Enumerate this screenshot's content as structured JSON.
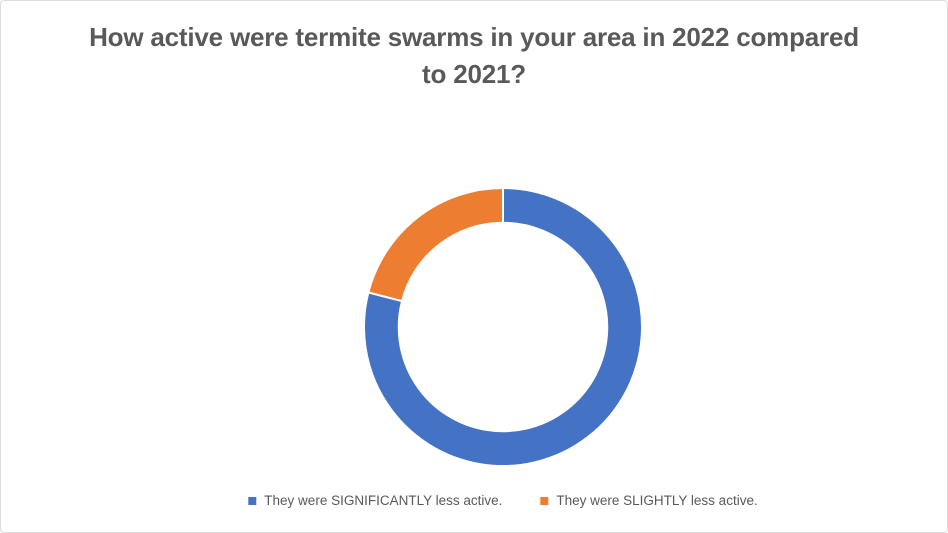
{
  "page": {
    "background_color": "#ffffff",
    "border_color": "#dcdcdc"
  },
  "chart_data": {
    "type": "donut",
    "title": "How active were termite swarms in your area in 2022 compared to 2021?",
    "title_color": "#595959",
    "segments": [
      {
        "label": "They were SIGNIFICANTLY less active.",
        "value": 79,
        "color": "#4472C4"
      },
      {
        "label": "They were SLIGHTLY less active.",
        "value": 21,
        "color": "#ED7D31"
      }
    ],
    "units": "% (estimated from arc angles; no data labels shown)",
    "start_angle_deg": 0,
    "direction": "clockwise",
    "hole_ratio": 0.75,
    "slice_border_color": "#ffffff",
    "legend_position": "bottom",
    "legend_text_color": "#595959",
    "data_labels_shown": false
  }
}
